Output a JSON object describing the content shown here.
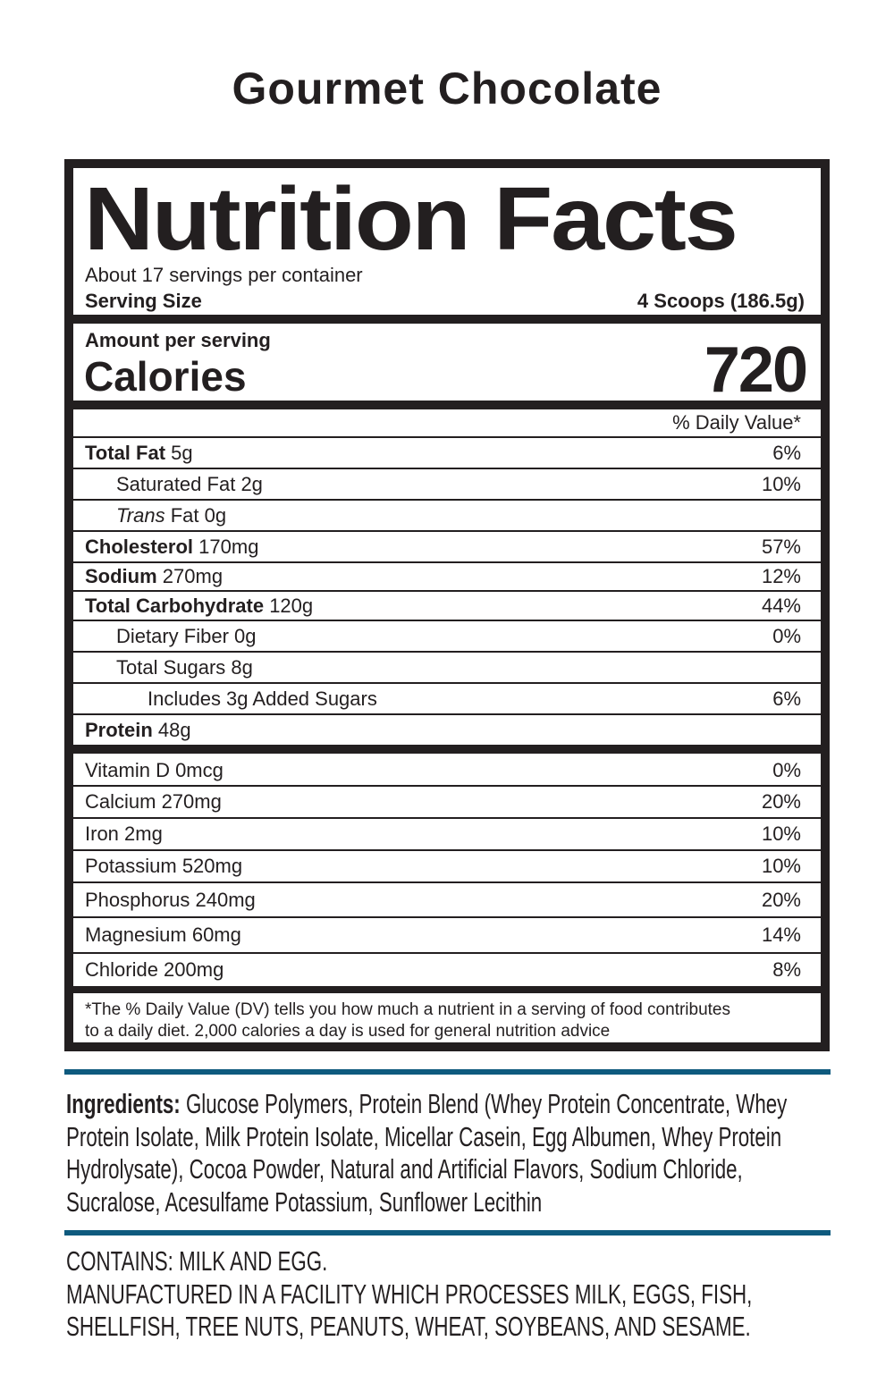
{
  "product_name": "Gourmet Chocolate",
  "label": {
    "title": "Nutrition Facts",
    "servings_per_container": "About 17 servings per container",
    "serving_size_label": "Serving Size",
    "serving_size_value": "4 Scoops (186.5g)",
    "amount_per_serving": "Amount per serving",
    "calories_label": "Calories",
    "calories_value": "720",
    "daily_value_header": "% Daily Value*",
    "nutrients": [
      {
        "name": "Total Fat",
        "amount": "5g",
        "dv": "6%",
        "bold": true,
        "indent": 0
      },
      {
        "name": "Saturated Fat",
        "amount": "2g",
        "dv": "10%",
        "bold": false,
        "indent": 1
      },
      {
        "name": "Trans",
        "suffix": "Fat",
        "amount": "0g",
        "dv": "",
        "bold": false,
        "indent": 1,
        "italic": true
      },
      {
        "name": "Cholesterol",
        "amount": "170mg",
        "dv": "57%",
        "bold": true,
        "indent": 0
      },
      {
        "name": "Sodium",
        "amount": "270mg",
        "dv": "12%",
        "bold": true,
        "indent": 0
      },
      {
        "name": "Total Carbohydrate",
        "amount": "120g",
        "dv": "44%",
        "bold": true,
        "indent": 0
      },
      {
        "name": "Dietary Fiber",
        "amount": "0g",
        "dv": "0%",
        "bold": false,
        "indent": 1
      },
      {
        "name": "Total Sugars",
        "amount": "8g",
        "dv": "",
        "bold": false,
        "indent": 1
      },
      {
        "name": "Includes 3g Added Sugars",
        "amount": "",
        "dv": "6%",
        "bold": false,
        "indent": 2
      },
      {
        "name": "Protein",
        "amount": "48g",
        "dv": "",
        "bold": true,
        "indent": 0
      }
    ],
    "vitamins": [
      {
        "name": "Vitamin D 0mcg",
        "dv": "0%"
      },
      {
        "name": "Calcium 270mg",
        "dv": "20%"
      },
      {
        "name": "Iron 2mg",
        "dv": "10%"
      },
      {
        "name": "Potassium 520mg",
        "dv": "10%"
      },
      {
        "name": "Phosphorus 240mg",
        "dv": "20%"
      },
      {
        "name": "Magnesium 60mg",
        "dv": "14%"
      },
      {
        "name": "Chloride 200mg",
        "dv": "8%"
      }
    ],
    "footnote_line1": "*The % Daily Value (DV) tells you how much a nutrient in a serving of food contributes",
    "footnote_line2": "to a daily diet. 2,000 calories a day is used for general nutrition advice"
  },
  "ingredients": {
    "label": "Ingredients:",
    "text": "Glucose Polymers, Protein Blend (Whey Protein Concentrate, Whey Protein Isolate, Milk Protein Isolate, Micellar Casein, Egg Albumen, Whey Protein Hydrolysate), Cocoa Powder, Natural and Artificial Flavors, Sodium Chloride, Sucralose, Acesulfame Potassium, Sunflower Lecithin"
  },
  "allergens": {
    "contains": "CONTAINS: MILK AND EGG.",
    "facility": "MANUFACTURED IN A FACILITY WHICH PROCESSES MILK, EGGS, FISH, SHELLFISH, TREE NUTS, PEANUTS, WHEAT, SOYBEANS, AND SESAME."
  },
  "colors": {
    "accent_rule": "#0e5a7e",
    "ink": "#231f20"
  }
}
